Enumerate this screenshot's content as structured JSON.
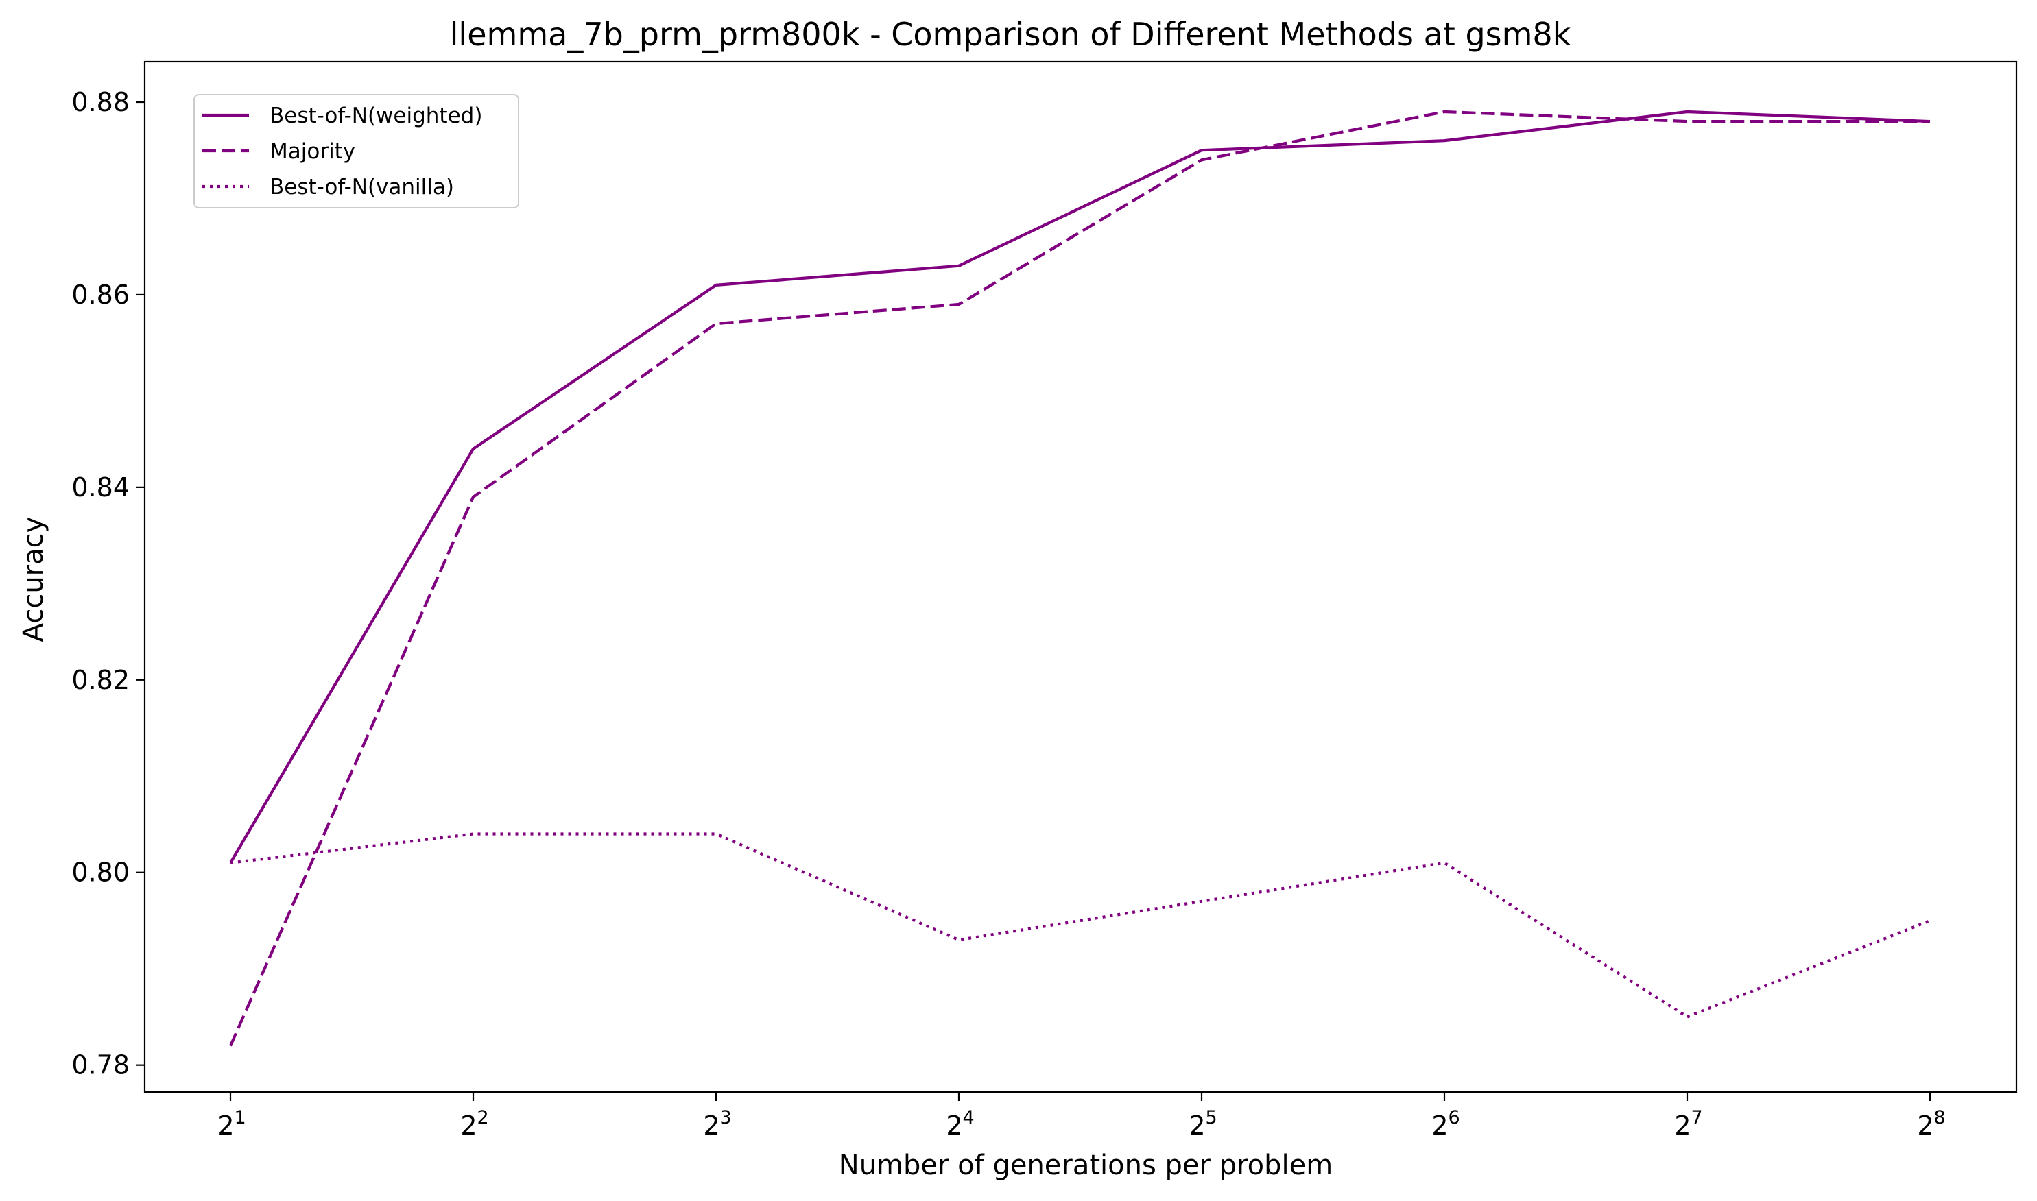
{
  "chart_data": {
    "type": "line",
    "title": "llemma_7b_prm_prm800k - Comparison of Different Methods at gsm8k",
    "xlabel": "Number of generations per problem",
    "ylabel": "Accuracy",
    "x_base": "2",
    "x_exponents": [
      "1",
      "2",
      "3",
      "4",
      "5",
      "6",
      "7",
      "8"
    ],
    "x": [
      2,
      4,
      8,
      16,
      32,
      64,
      128,
      256
    ],
    "x_scale": "log2",
    "ylim": [
      0.7772,
      0.8842
    ],
    "yticks": [
      "0.78",
      "0.80",
      "0.82",
      "0.84",
      "0.86",
      "0.88"
    ],
    "ytick_values": [
      0.78,
      0.8,
      0.82,
      0.84,
      0.86,
      0.88
    ],
    "grid": false,
    "legend_position": "upper left",
    "color": "#800080",
    "series": [
      {
        "name": "Best-of-N(weighted)",
        "style": "solid",
        "values": [
          0.801,
          0.844,
          0.861,
          0.863,
          0.875,
          0.876,
          0.879,
          0.878
        ]
      },
      {
        "name": "Majority",
        "style": "dashed",
        "values": [
          0.782,
          0.839,
          0.857,
          0.859,
          0.874,
          0.879,
          0.878,
          0.878
        ]
      },
      {
        "name": "Best-of-N(vanilla)",
        "style": "dotted",
        "values": [
          0.801,
          0.804,
          0.804,
          0.793,
          0.797,
          0.801,
          0.785,
          0.795
        ]
      }
    ]
  }
}
